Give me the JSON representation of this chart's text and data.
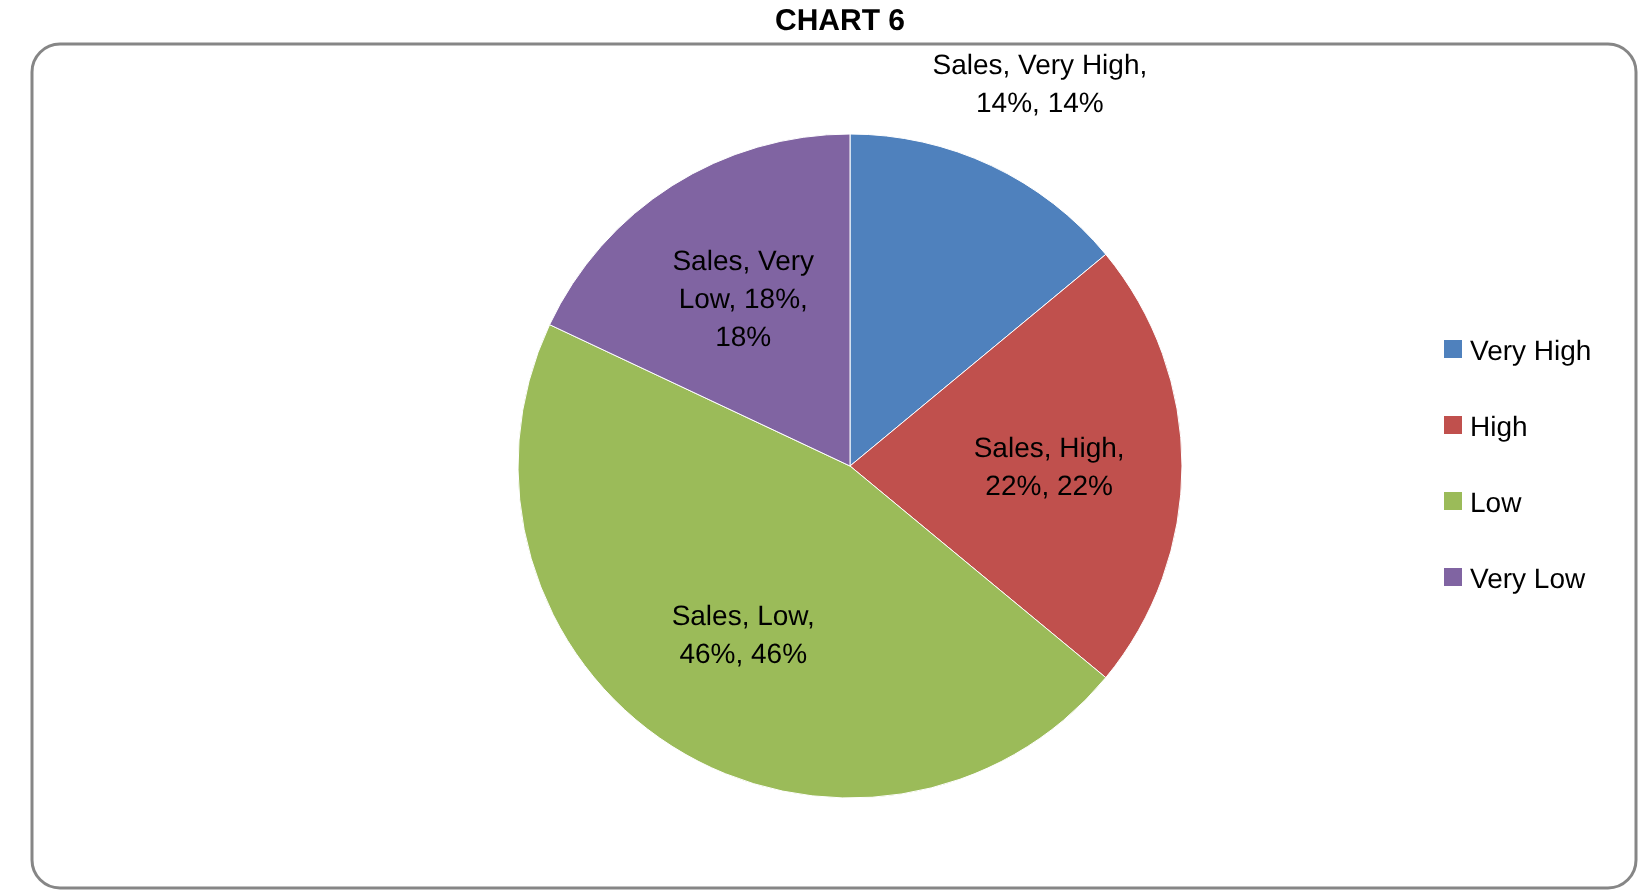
{
  "chart_data": {
    "type": "pie",
    "title": "CHART 6",
    "categories": [
      "Very High",
      "High",
      "Low",
      "Very Low"
    ],
    "values": [
      14,
      22,
      46,
      18
    ],
    "colors": [
      "#4f81bd",
      "#c0504d",
      "#9bbb59",
      "#8064a2"
    ],
    "value_labels": [
      "Sales, Very High, 14%, 14%",
      "Sales, High, 22%, 22%",
      "Sales, Low, 46%, 46%",
      "Sales, Very Low, 18%, 18%"
    ],
    "legend": "right"
  }
}
